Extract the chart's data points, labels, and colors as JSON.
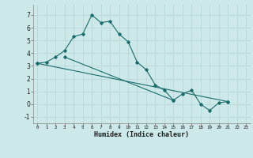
{
  "xlabel": "Humidex (Indice chaleur)",
  "bg_color": "#cde8e8",
  "grid_color": "#b8d8d8",
  "line_color": "#1a6b6b",
  "xlim": [
    -0.5,
    23.5
  ],
  "ylim": [
    -1.5,
    7.8
  ],
  "yticks": [
    -1,
    0,
    1,
    2,
    3,
    4,
    5,
    6,
    7
  ],
  "xticks": [
    0,
    1,
    2,
    3,
    4,
    5,
    6,
    7,
    8,
    9,
    10,
    11,
    12,
    13,
    14,
    15,
    16,
    17,
    18,
    19,
    20,
    21,
    22,
    23
  ],
  "y1": [
    3.2,
    3.3,
    3.7,
    4.2,
    5.3,
    5.5,
    7.0,
    6.4,
    6.5,
    5.5,
    4.9,
    3.3,
    2.7,
    1.5,
    1.1,
    0.3,
    0.8,
    1.1,
    0.0,
    -0.5,
    0.1,
    0.2,
    null,
    null
  ],
  "line2_x": [
    0,
    21
  ],
  "line2_y": [
    3.2,
    0.2
  ],
  "line3_x": [
    3,
    15
  ],
  "line3_y": [
    3.7,
    0.3
  ]
}
